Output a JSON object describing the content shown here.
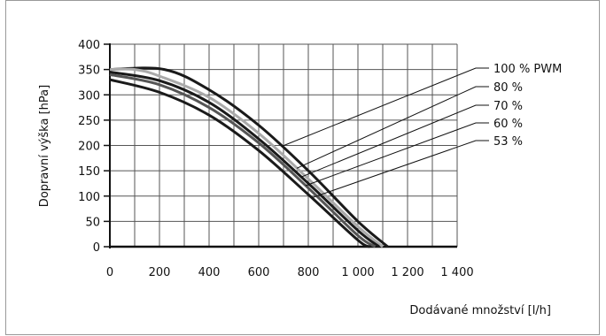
{
  "chart_data": {
    "type": "line",
    "title": "",
    "xlabel": "Dodávané množství [l/h]",
    "ylabel": "Dopravní výška [hPa]",
    "xlim": [
      0,
      1400
    ],
    "ylim": [
      0,
      400
    ],
    "x_ticks": [
      0,
      200,
      400,
      600,
      800,
      1000,
      1200,
      1400
    ],
    "x_tick_labels": [
      "0",
      "200",
      "400",
      "600",
      "800",
      "1 000",
      "1 200",
      "1 400"
    ],
    "y_ticks": [
      0,
      50,
      100,
      150,
      200,
      250,
      300,
      350,
      400
    ],
    "y_tick_labels": [
      "0",
      "50",
      "100",
      "150",
      "200",
      "250",
      "300",
      "350",
      "400"
    ],
    "grid": true,
    "legend_placement": "right",
    "series": [
      {
        "name": "100 % PWM",
        "color": "#1a1a1a",
        "x": [
          0,
          220,
          400,
          600,
          800,
          1000,
          1120
        ],
        "y": [
          350,
          350,
          310,
          240,
          150,
          50,
          0
        ]
      },
      {
        "name": "80 %",
        "color": "#aaaaaa",
        "x": [
          0,
          100,
          200,
          400,
          600,
          800,
          1000,
          1100
        ],
        "y": [
          350,
          350,
          337,
          295,
          224,
          134,
          40,
          0
        ]
      },
      {
        "name": "70 %",
        "color": "#1a1a1a",
        "x": [
          0,
          200,
          400,
          600,
          800,
          1000,
          1085
        ],
        "y": [
          345,
          328,
          285,
          213,
          125,
          32,
          0
        ]
      },
      {
        "name": "60 %",
        "color": "#555555",
        "x": [
          0,
          200,
          400,
          600,
          800,
          1000,
          1070
        ],
        "y": [
          340,
          320,
          275,
          205,
          116,
          22,
          0
        ]
      },
      {
        "name": "53 %",
        "color": "#1a1a1a",
        "x": [
          0,
          200,
          400,
          600,
          800,
          1000,
          1050
        ],
        "y": [
          330,
          305,
          260,
          190,
          103,
          13,
          0
        ]
      }
    ]
  }
}
